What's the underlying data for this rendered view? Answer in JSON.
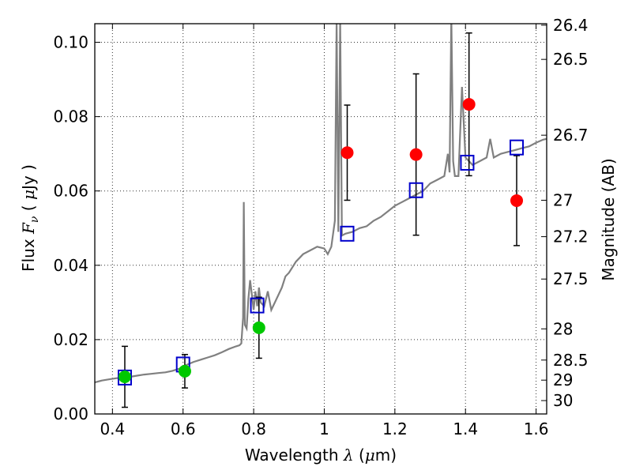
{
  "chart_data": {
    "type": "scatter",
    "xlabel": "Wavelength  λ (μm)",
    "ylabel": "Flux  F_ν ( μJy )",
    "ylabel_right": "Magnitude (AB)",
    "xlim": [
      0.35,
      1.63
    ],
    "ylim": [
      0.0,
      0.105
    ],
    "grid": true,
    "x_ticks": [
      0.4,
      0.6,
      0.8,
      1.0,
      1.2,
      1.4,
      1.6
    ],
    "x_tick_labels": [
      "0.4",
      "0.6",
      "0.8",
      "1",
      "1.2",
      "1.4",
      "1.6"
    ],
    "y_ticks": [
      0.0,
      0.02,
      0.04,
      0.06,
      0.08,
      0.1
    ],
    "y_tick_labels": [
      "0.00",
      "0.02",
      "0.04",
      "0.06",
      "0.08",
      "0.10"
    ],
    "right_ticks": [
      {
        "flux": 0.1046,
        "label": "26.4"
      },
      {
        "flux": 0.0954,
        "label": "26.5"
      },
      {
        "flux": 0.075,
        "label": "26.7"
      },
      {
        "flux": 0.0575,
        "label": "27"
      },
      {
        "flux": 0.0477,
        "label": "27.2"
      },
      {
        "flux": 0.0363,
        "label": "27.5"
      },
      {
        "flux": 0.0229,
        "label": "28"
      },
      {
        "flux": 0.0145,
        "label": "28.5"
      },
      {
        "flux": 0.0091,
        "label": "29"
      },
      {
        "flux": 0.0036,
        "label": "30"
      }
    ],
    "series": [
      {
        "style": "line",
        "color": "#808080",
        "x": [
          0.35,
          0.37,
          0.39,
          0.41,
          0.43,
          0.45,
          0.47,
          0.49,
          0.51,
          0.53,
          0.55,
          0.57,
          0.59,
          0.61,
          0.63,
          0.65,
          0.67,
          0.69,
          0.71,
          0.73,
          0.75,
          0.76,
          0.765,
          0.77,
          0.772,
          0.775,
          0.78,
          0.785,
          0.79,
          0.8,
          0.805,
          0.81,
          0.815,
          0.82,
          0.83,
          0.84,
          0.85,
          0.86,
          0.87,
          0.88,
          0.89,
          0.9,
          0.92,
          0.94,
          0.96,
          0.98,
          1.0,
          1.01,
          1.02,
          1.03,
          1.035,
          1.04,
          1.045,
          1.05,
          1.06,
          1.08,
          1.1,
          1.12,
          1.14,
          1.16,
          1.18,
          1.2,
          1.22,
          1.24,
          1.26,
          1.28,
          1.3,
          1.32,
          1.34,
          1.35,
          1.355,
          1.36,
          1.365,
          1.37,
          1.38,
          1.39,
          1.4,
          1.42,
          1.44,
          1.46,
          1.47,
          1.48,
          1.5,
          1.52,
          1.54,
          1.56,
          1.58,
          1.6,
          1.62,
          1.63
        ],
        "y": [
          0.0085,
          0.009,
          0.0093,
          0.0096,
          0.0098,
          0.01,
          0.0103,
          0.0106,
          0.0108,
          0.011,
          0.0112,
          0.0116,
          0.0122,
          0.0132,
          0.014,
          0.0146,
          0.0152,
          0.0158,
          0.0166,
          0.0175,
          0.0182,
          0.0185,
          0.019,
          0.026,
          0.057,
          0.024,
          0.023,
          0.031,
          0.036,
          0.028,
          0.033,
          0.029,
          0.034,
          0.03,
          0.029,
          0.033,
          0.028,
          0.03,
          0.032,
          0.034,
          0.037,
          0.038,
          0.041,
          0.043,
          0.044,
          0.045,
          0.0445,
          0.043,
          0.045,
          0.052,
          0.106,
          0.049,
          0.106,
          0.048,
          0.0485,
          0.049,
          0.05,
          0.0505,
          0.052,
          0.053,
          0.0545,
          0.056,
          0.057,
          0.058,
          0.059,
          0.06,
          0.062,
          0.063,
          0.064,
          0.07,
          0.065,
          0.107,
          0.068,
          0.064,
          0.064,
          0.088,
          0.069,
          0.067,
          0.068,
          0.069,
          0.074,
          0.069,
          0.07,
          0.0705,
          0.071,
          0.0715,
          0.072,
          0.073,
          0.0738,
          0.074
        ]
      },
      {
        "style": "errorbar-points",
        "color": "#00c800",
        "x": [
          0.435,
          0.605,
          0.815
        ],
        "y": [
          0.01,
          0.0115,
          0.0232
        ],
        "yerr": [
          0.0082,
          0.0045,
          0.0082
        ]
      },
      {
        "style": "errorbar-points",
        "color": "#ff0000",
        "x": [
          1.065,
          1.26,
          1.41,
          1.545
        ],
        "y": [
          0.0703,
          0.0698,
          0.0833,
          0.0574
        ],
        "yerr": [
          0.0128,
          0.0217,
          0.0192,
          0.0121
        ]
      },
      {
        "style": "open-squares",
        "color": "#0000cc",
        "x": [
          0.435,
          0.6,
          0.81,
          1.065,
          1.26,
          1.405,
          1.545
        ],
        "y": [
          0.0098,
          0.0133,
          0.0292,
          0.0485,
          0.0602,
          0.0676,
          0.0717
        ]
      }
    ]
  }
}
